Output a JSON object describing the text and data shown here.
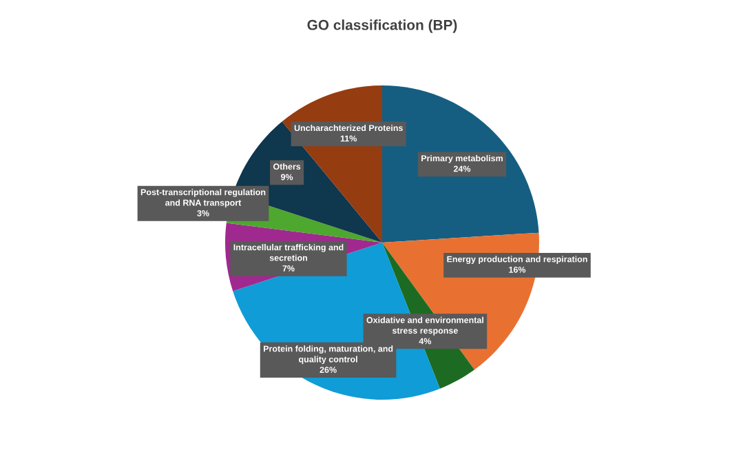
{
  "chart_data": {
    "type": "pie",
    "title": "GO classification (BP)",
    "categories": [
      "Primary metabolism",
      "Energy production and respiration",
      "Oxidative and environmental\nstress response",
      "Protein folding, maturation, and\nquality control",
      "Intracellular trafficking and\nsecretion",
      "Post-transcriptional regulation\nand RNA transport",
      "Others",
      "Uncharachterized Proteins"
    ],
    "values": [
      24,
      16,
      4,
      26,
      7,
      3,
      9,
      11
    ],
    "value_labels": [
      "24%",
      "16%",
      "4%",
      "26%",
      "7%",
      "3%",
      "9%",
      "11%"
    ],
    "colors": [
      "#155e82",
      "#e87132",
      "#1d6b22",
      "#109cd6",
      "#a0298f",
      "#4ea72e",
      "#0f374d",
      "#953c11"
    ]
  }
}
